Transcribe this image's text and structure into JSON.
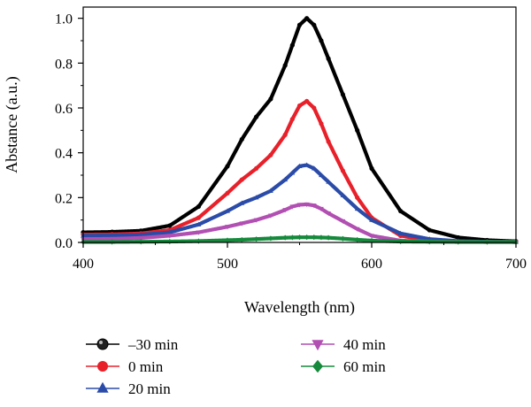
{
  "chart_data": {
    "type": "line",
    "xlabel": "Wavelength (nm)",
    "ylabel": "Abstance (a.u.)",
    "xlim": [
      400,
      700
    ],
    "ylim": [
      0,
      1.05
    ],
    "x_ticks": [
      400,
      500,
      600,
      700
    ],
    "y_ticks": [
      0.0,
      0.2,
      0.4,
      0.6,
      0.8,
      1.0
    ],
    "x_tick_labels": [
      "400",
      "500",
      "600",
      "700"
    ],
    "y_tick_labels": [
      "0.0",
      "0.2",
      "0.4",
      "0.6",
      "0.8",
      "1.0"
    ],
    "grid": false,
    "legend_position": "bottom",
    "x": [
      400,
      420,
      440,
      460,
      480,
      500,
      510,
      520,
      530,
      540,
      545,
      550,
      555,
      560,
      565,
      570,
      580,
      590,
      600,
      620,
      640,
      660,
      680,
      700
    ],
    "series": [
      {
        "name": "–30 min",
        "color": "#000000",
        "marker": "circle",
        "values": [
          0.045,
          0.047,
          0.052,
          0.075,
          0.16,
          0.34,
          0.46,
          0.56,
          0.64,
          0.79,
          0.88,
          0.97,
          1.0,
          0.97,
          0.9,
          0.82,
          0.66,
          0.5,
          0.33,
          0.14,
          0.055,
          0.022,
          0.01,
          0.005
        ]
      },
      {
        "name": "0 min",
        "color": "#e8202a",
        "marker": "circle",
        "values": [
          0.035,
          0.036,
          0.04,
          0.055,
          0.11,
          0.22,
          0.28,
          0.33,
          0.39,
          0.48,
          0.55,
          0.61,
          0.63,
          0.6,
          0.53,
          0.45,
          0.32,
          0.2,
          0.11,
          0.03,
          0.008,
          0.004,
          0.003,
          0.002
        ]
      },
      {
        "name": "20 min",
        "color": "#2a4ba8",
        "marker": "triangle-up",
        "values": [
          0.03,
          0.031,
          0.034,
          0.045,
          0.08,
          0.14,
          0.175,
          0.2,
          0.23,
          0.28,
          0.31,
          0.34,
          0.345,
          0.33,
          0.3,
          0.27,
          0.21,
          0.15,
          0.1,
          0.04,
          0.015,
          0.006,
          0.003,
          0.002
        ]
      },
      {
        "name": "40 min",
        "color": "#b24fb2",
        "marker": "triangle-down",
        "values": [
          0.015,
          0.016,
          0.02,
          0.03,
          0.045,
          0.07,
          0.085,
          0.1,
          0.12,
          0.145,
          0.16,
          0.168,
          0.17,
          0.165,
          0.15,
          0.13,
          0.095,
          0.06,
          0.03,
          0.008,
          0.004,
          0.003,
          0.002,
          0.002
        ]
      },
      {
        "name": "60 min",
        "color": "#168a3c",
        "marker": "diamond",
        "values": [
          0.002,
          0.002,
          0.003,
          0.004,
          0.006,
          0.01,
          0.012,
          0.015,
          0.018,
          0.021,
          0.022,
          0.023,
          0.023,
          0.023,
          0.022,
          0.021,
          0.017,
          0.012,
          0.008,
          0.004,
          0.003,
          0.002,
          0.002,
          0.002
        ]
      }
    ]
  }
}
